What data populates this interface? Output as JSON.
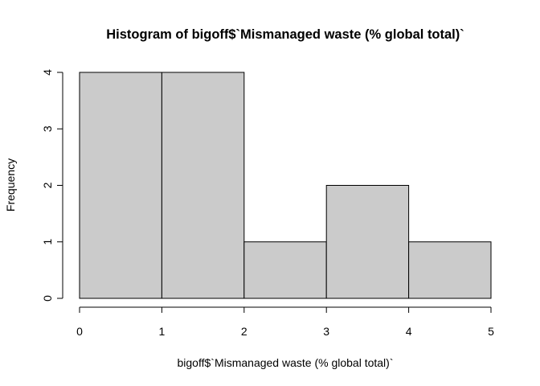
{
  "chart_data": {
    "type": "bar",
    "title": "Histogram of bigoff$`Mismanaged waste (% global total)`",
    "xlabel": "bigoff$`Mismanaged waste (% global total)`",
    "ylabel": "Frequency",
    "bins": [
      {
        "from": 0,
        "to": 1,
        "count": 4
      },
      {
        "from": 1,
        "to": 2,
        "count": 4
      },
      {
        "from": 2,
        "to": 3,
        "count": 1
      },
      {
        "from": 3,
        "to": 4,
        "count": 2
      },
      {
        "from": 4,
        "to": 5,
        "count": 1
      }
    ],
    "xlim": [
      0,
      5
    ],
    "ylim": [
      0,
      4
    ],
    "xticks": [
      "0",
      "1",
      "2",
      "3",
      "4",
      "5"
    ],
    "yticks": [
      "0",
      "1",
      "2",
      "3",
      "4"
    ],
    "grid": false,
    "bar_fill": "#cbcbcb",
    "bar_stroke": "#000000"
  }
}
